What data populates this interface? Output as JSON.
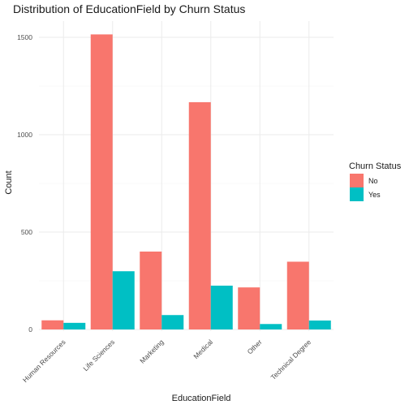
{
  "chart_data": {
    "type": "bar",
    "title": "Distribution of EducationField by Churn Status",
    "xlabel": "EducationField",
    "ylabel": "Count",
    "categories": [
      "Human Resources",
      "Life Sciences",
      "Marketing",
      "Medical",
      "Other",
      "Technical Degree"
    ],
    "series": [
      {
        "name": "No",
        "values": [
          47,
          1515,
          400,
          1167,
          216,
          348
        ],
        "color": "#F8766D"
      },
      {
        "name": "Yes",
        "values": [
          34,
          299,
          74,
          225,
          28,
          46
        ],
        "color": "#00BFC4"
      }
    ],
    "yticks": [
      0,
      500,
      1000,
      1500
    ],
    "ylim": [
      0,
      1515
    ],
    "grid": true,
    "legend": {
      "title": "Churn Status",
      "position": "right"
    }
  }
}
